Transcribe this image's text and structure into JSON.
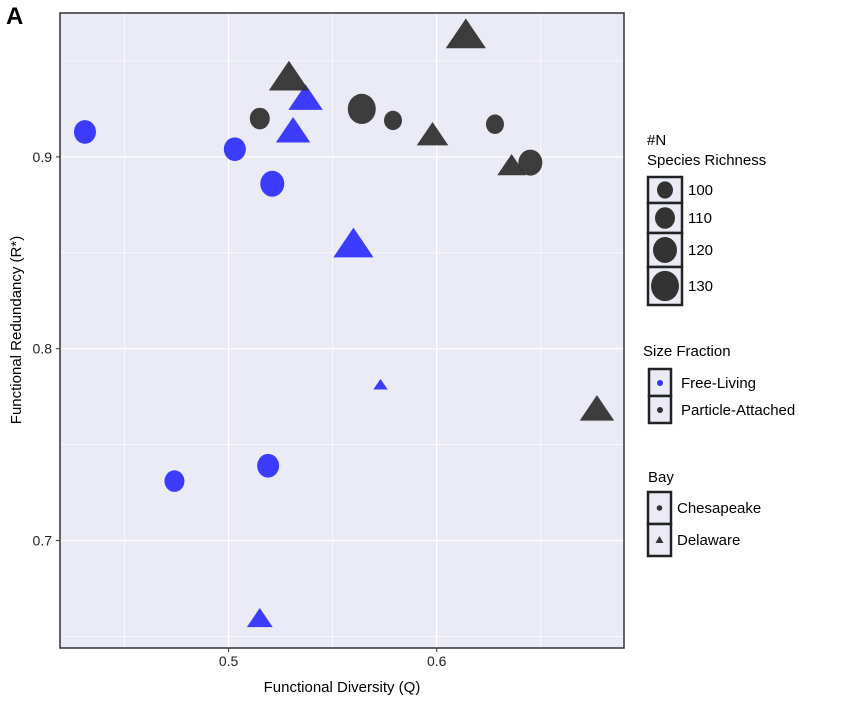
{
  "panel_label": "A",
  "chart_data": {
    "type": "scatter",
    "title": "",
    "xlabel": "Functional Diversity (Q)",
    "ylabel": "Functional Redundancy (R*)",
    "xlim": [
      0.419,
      0.69
    ],
    "ylim": [
      0.644,
      0.975
    ],
    "xticks": [
      {
        "value": 0.5,
        "label": "0.5"
      },
      {
        "value": 0.6,
        "label": "0.6"
      }
    ],
    "yticks": [
      {
        "value": 0.7,
        "label": "0.7"
      },
      {
        "value": 0.8,
        "label": "0.8"
      },
      {
        "value": 0.9,
        "label": "0.9"
      }
    ],
    "minor_x": [
      0.45,
      0.55,
      0.65
    ],
    "minor_y": [
      0.65,
      0.75,
      0.85,
      0.95
    ],
    "grid": true,
    "colors": {
      "Free-Living": "#3333ff",
      "Particle-Attached": "#333333",
      "panel_bg": "#ebebf7"
    },
    "points": [
      {
        "x": 0.431,
        "y": 0.913,
        "richness": 115,
        "fraction": "Free-Living",
        "bay": "Chesapeake"
      },
      {
        "x": 0.503,
        "y": 0.904,
        "richness": 115,
        "fraction": "Free-Living",
        "bay": "Chesapeake"
      },
      {
        "x": 0.521,
        "y": 0.886,
        "richness": 120,
        "fraction": "Free-Living",
        "bay": "Chesapeake"
      },
      {
        "x": 0.519,
        "y": 0.739,
        "richness": 115,
        "fraction": "Free-Living",
        "bay": "Chesapeake"
      },
      {
        "x": 0.474,
        "y": 0.731,
        "richness": 110,
        "fraction": "Free-Living",
        "bay": "Chesapeake"
      },
      {
        "x": 0.537,
        "y": 0.93,
        "richness": 120,
        "fraction": "Free-Living",
        "bay": "Delaware"
      },
      {
        "x": 0.531,
        "y": 0.913,
        "richness": 120,
        "fraction": "Free-Living",
        "bay": "Delaware"
      },
      {
        "x": 0.56,
        "y": 0.854,
        "richness": 130,
        "fraction": "Free-Living",
        "bay": "Delaware"
      },
      {
        "x": 0.573,
        "y": 0.781,
        "richness": 85,
        "fraction": "Free-Living",
        "bay": "Delaware"
      },
      {
        "x": 0.515,
        "y": 0.659,
        "richness": 105,
        "fraction": "Free-Living",
        "bay": "Delaware"
      },
      {
        "x": 0.515,
        "y": 0.92,
        "richness": 110,
        "fraction": "Particle-Attached",
        "bay": "Chesapeake"
      },
      {
        "x": 0.564,
        "y": 0.925,
        "richness": 130,
        "fraction": "Particle-Attached",
        "bay": "Chesapeake"
      },
      {
        "x": 0.579,
        "y": 0.919,
        "richness": 105,
        "fraction": "Particle-Attached",
        "bay": "Chesapeake"
      },
      {
        "x": 0.628,
        "y": 0.917,
        "richness": 105,
        "fraction": "Particle-Attached",
        "bay": "Chesapeake"
      },
      {
        "x": 0.645,
        "y": 0.897,
        "richness": 120,
        "fraction": "Particle-Attached",
        "bay": "Chesapeake"
      },
      {
        "x": 0.529,
        "y": 0.941,
        "richness": 130,
        "fraction": "Particle-Attached",
        "bay": "Delaware"
      },
      {
        "x": 0.614,
        "y": 0.963,
        "richness": 130,
        "fraction": "Particle-Attached",
        "bay": "Delaware"
      },
      {
        "x": 0.598,
        "y": 0.911,
        "richness": 115,
        "fraction": "Particle-Attached",
        "bay": "Delaware"
      },
      {
        "x": 0.636,
        "y": 0.895,
        "richness": 110,
        "fraction": "Particle-Attached",
        "bay": "Delaware"
      },
      {
        "x": 0.677,
        "y": 0.768,
        "richness": 120,
        "fraction": "Particle-Attached",
        "bay": "Delaware"
      }
    ],
    "legends": {
      "richness": {
        "title_line1": "#N",
        "title_line2": "Species Richness",
        "entries": [
          {
            "value": 100,
            "label": "100"
          },
          {
            "value": 110,
            "label": "110"
          },
          {
            "value": 120,
            "label": "120"
          },
          {
            "value": 130,
            "label": "130"
          }
        ]
      },
      "fraction": {
        "title": "Size Fraction",
        "entries": [
          "Free-Living",
          "Particle-Attached"
        ]
      },
      "bay": {
        "title": "Bay",
        "entries": [
          "Chesapeake",
          "Delaware"
        ]
      }
    },
    "legend_placement": "right"
  }
}
